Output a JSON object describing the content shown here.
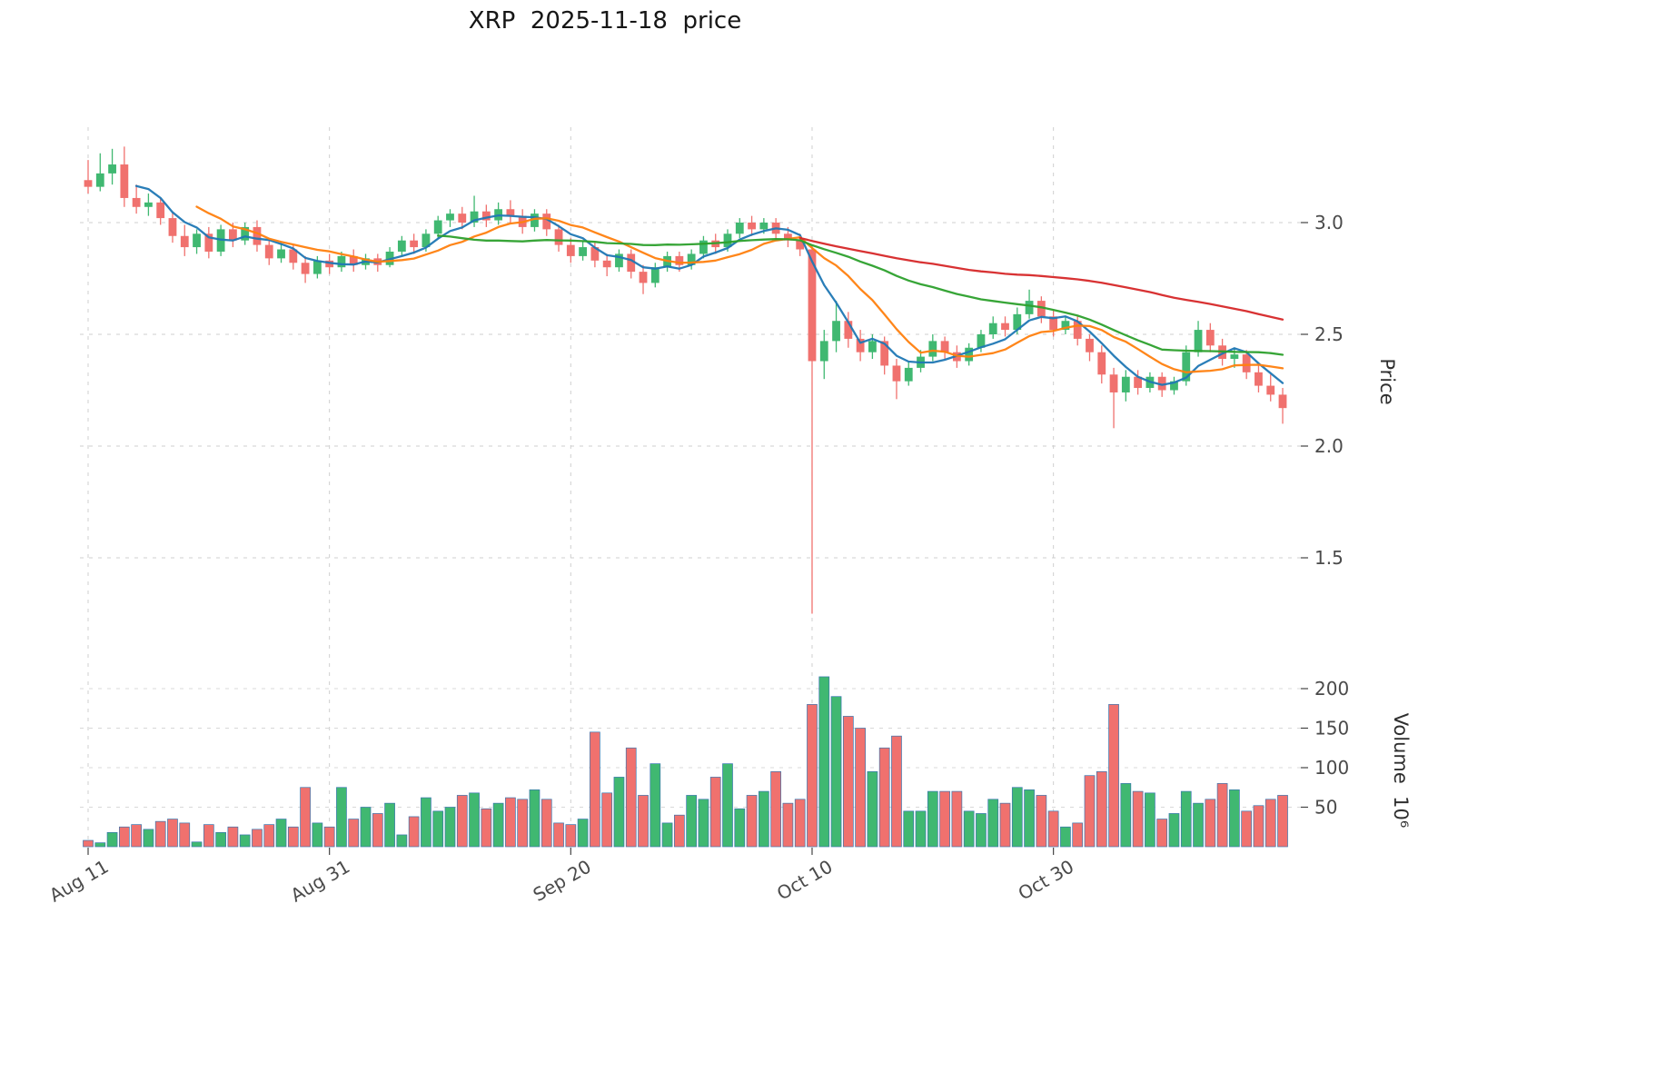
{
  "title": "XRP  2025-11-18  price",
  "chart_data": {
    "type": "candlestick",
    "title": "XRP  2025-11-18  price",
    "start_date": "2025-08-11",
    "frequency": "daily",
    "x_ticks": [
      {
        "index": 0,
        "label": "Aug 11"
      },
      {
        "index": 20,
        "label": "Aug 31"
      },
      {
        "index": 40,
        "label": "Sep 20"
      },
      {
        "index": 60,
        "label": "Oct 10"
      },
      {
        "index": 80,
        "label": "Oct 30"
      }
    ],
    "price_axis": {
      "label": "Price",
      "ticks": [
        3.0,
        2.5,
        2.0,
        1.5
      ],
      "ylim": [
        1.19,
        3.43
      ]
    },
    "volume_axis": {
      "label": "Volume  10⁶",
      "ticks": [
        200,
        150,
        100,
        50
      ],
      "ylim": [
        0,
        267
      ]
    },
    "moving_averages": [
      {
        "window": 5,
        "color": "#1f77b4"
      },
      {
        "window": 10,
        "color": "#ff7f0e"
      },
      {
        "window": 30,
        "color": "#2ca02c"
      },
      {
        "window": 60,
        "color": "#d62728"
      }
    ],
    "colors": {
      "up": "#40b871",
      "down": "#f0716e",
      "grid": "#cfcfcf",
      "volume_edge": "#3a77b0",
      "tick_label": "#4a4a4a"
    },
    "ohlc": [
      [
        3.19,
        3.28,
        3.13,
        3.16
      ],
      [
        3.16,
        3.31,
        3.14,
        3.22
      ],
      [
        3.22,
        3.33,
        3.17,
        3.26
      ],
      [
        3.26,
        3.34,
        3.07,
        3.11
      ],
      [
        3.11,
        3.17,
        3.04,
        3.07
      ],
      [
        3.07,
        3.13,
        3.03,
        3.09
      ],
      [
        3.09,
        3.11,
        2.99,
        3.02
      ],
      [
        3.02,
        3.05,
        2.91,
        2.94
      ],
      [
        2.94,
        2.99,
        2.85,
        2.89
      ],
      [
        2.89,
        2.97,
        2.86,
        2.95
      ],
      [
        2.95,
        2.98,
        2.84,
        2.87
      ],
      [
        2.87,
        2.99,
        2.85,
        2.97
      ],
      [
        2.97,
        3.0,
        2.89,
        2.92
      ],
      [
        2.92,
        3.0,
        2.9,
        2.98
      ],
      [
        2.98,
        3.01,
        2.87,
        2.9
      ],
      [
        2.9,
        2.93,
        2.81,
        2.84
      ],
      [
        2.84,
        2.91,
        2.82,
        2.88
      ],
      [
        2.88,
        2.9,
        2.79,
        2.82
      ],
      [
        2.82,
        2.85,
        2.73,
        2.77
      ],
      [
        2.77,
        2.85,
        2.75,
        2.83
      ],
      [
        2.83,
        2.86,
        2.77,
        2.8
      ],
      [
        2.8,
        2.87,
        2.78,
        2.85
      ],
      [
        2.85,
        2.88,
        2.78,
        2.81
      ],
      [
        2.81,
        2.86,
        2.79,
        2.84
      ],
      [
        2.84,
        2.86,
        2.78,
        2.81
      ],
      [
        2.81,
        2.89,
        2.8,
        2.87
      ],
      [
        2.87,
        2.94,
        2.85,
        2.92
      ],
      [
        2.92,
        2.95,
        2.86,
        2.89
      ],
      [
        2.89,
        2.97,
        2.87,
        2.95
      ],
      [
        2.95,
        3.03,
        2.93,
        3.01
      ],
      [
        3.01,
        3.06,
        2.98,
        3.04
      ],
      [
        3.04,
        3.07,
        2.97,
        3.0
      ],
      [
        3.0,
        3.12,
        2.98,
        3.05
      ],
      [
        3.05,
        3.08,
        2.98,
        3.01
      ],
      [
        3.01,
        3.09,
        2.99,
        3.06
      ],
      [
        3.06,
        3.1,
        3.0,
        3.03
      ],
      [
        3.03,
        3.06,
        2.95,
        2.98
      ],
      [
        2.98,
        3.06,
        2.96,
        3.04
      ],
      [
        3.04,
        3.06,
        2.94,
        2.97
      ],
      [
        2.97,
        2.99,
        2.87,
        2.9
      ],
      [
        2.9,
        2.93,
        2.82,
        2.85
      ],
      [
        2.85,
        2.92,
        2.83,
        2.89
      ],
      [
        2.89,
        2.91,
        2.8,
        2.83
      ],
      [
        2.83,
        2.86,
        2.76,
        2.8
      ],
      [
        2.8,
        2.88,
        2.78,
        2.86
      ],
      [
        2.86,
        2.88,
        2.75,
        2.78
      ],
      [
        2.78,
        2.81,
        2.68,
        2.73
      ],
      [
        2.73,
        2.82,
        2.71,
        2.8
      ],
      [
        2.8,
        2.87,
        2.78,
        2.85
      ],
      [
        2.85,
        2.87,
        2.78,
        2.81
      ],
      [
        2.81,
        2.88,
        2.79,
        2.86
      ],
      [
        2.86,
        2.94,
        2.84,
        2.92
      ],
      [
        2.92,
        2.95,
        2.86,
        2.89
      ],
      [
        2.89,
        2.97,
        2.87,
        2.95
      ],
      [
        2.95,
        3.02,
        2.93,
        3.0
      ],
      [
        3.0,
        3.03,
        2.94,
        2.97
      ],
      [
        2.97,
        3.02,
        2.95,
        3.0
      ],
      [
        3.0,
        3.02,
        2.92,
        2.95
      ],
      [
        2.95,
        2.98,
        2.89,
        2.92
      ],
      [
        2.92,
        2.95,
        2.85,
        2.88
      ],
      [
        2.88,
        2.9,
        1.25,
        2.38
      ],
      [
        2.38,
        2.52,
        2.3,
        2.47
      ],
      [
        2.47,
        2.65,
        2.42,
        2.56
      ],
      [
        2.56,
        2.6,
        2.44,
        2.48
      ],
      [
        2.48,
        2.52,
        2.38,
        2.42
      ],
      [
        2.42,
        2.5,
        2.39,
        2.47
      ],
      [
        2.47,
        2.49,
        2.32,
        2.36
      ],
      [
        2.36,
        2.39,
        2.21,
        2.29
      ],
      [
        2.29,
        2.38,
        2.27,
        2.35
      ],
      [
        2.35,
        2.43,
        2.33,
        2.4
      ],
      [
        2.4,
        2.5,
        2.38,
        2.47
      ],
      [
        2.47,
        2.49,
        2.39,
        2.42
      ],
      [
        2.42,
        2.45,
        2.35,
        2.38
      ],
      [
        2.38,
        2.46,
        2.36,
        2.44
      ],
      [
        2.44,
        2.52,
        2.42,
        2.5
      ],
      [
        2.5,
        2.58,
        2.48,
        2.55
      ],
      [
        2.55,
        2.58,
        2.49,
        2.52
      ],
      [
        2.52,
        2.62,
        2.5,
        2.59
      ],
      [
        2.59,
        2.7,
        2.57,
        2.65
      ],
      [
        2.65,
        2.67,
        2.55,
        2.58
      ],
      [
        2.58,
        2.61,
        2.49,
        2.52
      ],
      [
        2.52,
        2.58,
        2.5,
        2.56
      ],
      [
        2.56,
        2.58,
        2.45,
        2.48
      ],
      [
        2.48,
        2.5,
        2.38,
        2.42
      ],
      [
        2.42,
        2.45,
        2.28,
        2.32
      ],
      [
        2.32,
        2.35,
        2.08,
        2.24
      ],
      [
        2.24,
        2.34,
        2.2,
        2.31
      ],
      [
        2.31,
        2.34,
        2.23,
        2.26
      ],
      [
        2.26,
        2.33,
        2.24,
        2.31
      ],
      [
        2.31,
        2.33,
        2.22,
        2.25
      ],
      [
        2.25,
        2.31,
        2.23,
        2.29
      ],
      [
        2.29,
        2.45,
        2.27,
        2.42
      ],
      [
        2.42,
        2.56,
        2.4,
        2.52
      ],
      [
        2.52,
        2.55,
        2.42,
        2.45
      ],
      [
        2.45,
        2.48,
        2.36,
        2.39
      ],
      [
        2.39,
        2.44,
        2.35,
        2.41
      ],
      [
        2.41,
        2.43,
        2.3,
        2.33
      ],
      [
        2.33,
        2.36,
        2.24,
        2.27
      ],
      [
        2.27,
        2.32,
        2.2,
        2.23
      ],
      [
        2.23,
        2.26,
        2.1,
        2.17
      ]
    ],
    "volume": [
      8,
      5,
      18,
      25,
      28,
      22,
      32,
      35,
      30,
      6,
      28,
      18,
      25,
      15,
      22,
      28,
      35,
      25,
      75,
      30,
      25,
      75,
      35,
      50,
      42,
      55,
      15,
      38,
      62,
      45,
      50,
      65,
      68,
      48,
      55,
      62,
      60,
      72,
      60,
      30,
      28,
      35,
      145,
      68,
      88,
      125,
      65,
      105,
      30,
      40,
      65,
      60,
      88,
      105,
      48,
      65,
      70,
      95,
      55,
      60,
      180,
      215,
      190,
      165,
      150,
      95,
      125,
      140,
      45,
      45,
      70,
      70,
      70,
      45,
      42,
      60,
      55,
      75,
      72,
      65,
      45,
      25,
      30,
      90,
      95,
      180,
      80,
      70,
      68,
      35,
      42,
      70,
      55,
      60,
      80,
      72,
      45,
      52,
      60,
      65
    ]
  }
}
